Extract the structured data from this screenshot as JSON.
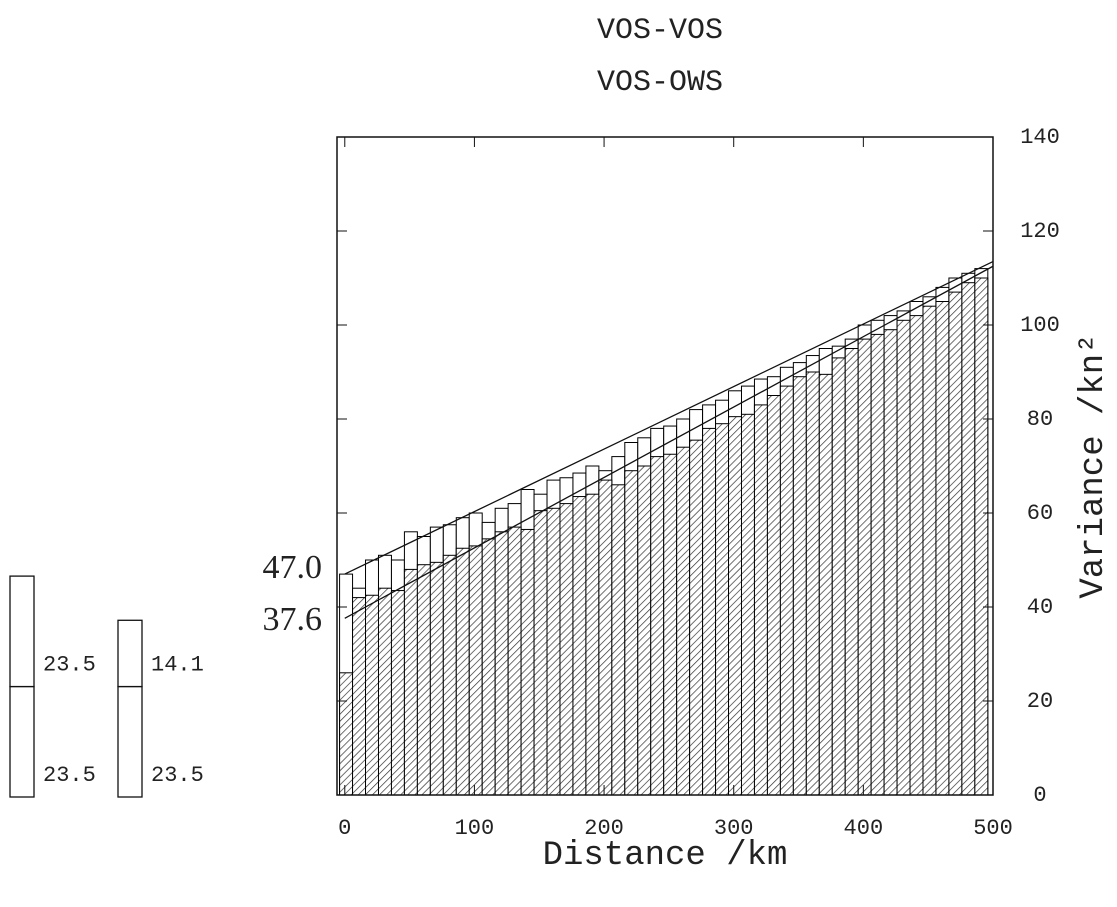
{
  "chart_data": {
    "type": "histogram",
    "x_label": "Distance /km",
    "y_label": "Variance /kn²",
    "xlim": [
      -6,
      500
    ],
    "xticks": [
      0,
      100,
      200,
      300,
      400,
      500
    ],
    "ylim": [
      0,
      140
    ],
    "yticks": [
      0,
      20,
      40,
      60,
      80,
      100,
      120,
      140
    ],
    "bins": [
      -4,
      6,
      16,
      26,
      36,
      46,
      56,
      66,
      76,
      86,
      96,
      106,
      116,
      126,
      136,
      146,
      156,
      166,
      176,
      186,
      196,
      206,
      216,
      226,
      236,
      246,
      256,
      266,
      276,
      286,
      296,
      306,
      316,
      326,
      336,
      346,
      356,
      366,
      376,
      386,
      396,
      406,
      416,
      426,
      436,
      446,
      456,
      466,
      476,
      486,
      496
    ],
    "series": [
      {
        "name": "VOS-VOS",
        "color": "#000000",
        "hatch": false,
        "values": [
          47,
          44,
          50,
          51,
          50,
          56,
          55,
          57,
          57.5,
          59,
          60,
          58,
          61,
          62,
          65,
          64,
          67,
          67.5,
          68.5,
          70,
          69,
          72,
          75,
          76,
          78,
          78.5,
          80,
          82,
          83,
          84,
          86,
          87,
          88.5,
          89,
          91,
          92,
          93.5,
          95,
          95.5,
          97,
          100,
          101,
          102,
          103,
          105,
          106,
          108,
          110,
          111,
          112
        ]
      },
      {
        "name": "VOS-OWS",
        "color": "#000000",
        "hatch": true,
        "values": [
          26,
          42,
          42.5,
          44,
          43.5,
          48,
          49,
          49.5,
          51,
          52.5,
          53,
          54.5,
          56,
          57,
          56.5,
          60.5,
          61,
          62,
          63.5,
          64,
          67,
          66,
          69,
          70,
          72,
          72.5,
          74,
          75.5,
          78,
          79,
          80.5,
          81,
          83,
          85,
          87,
          89,
          90,
          89.5,
          93,
          95,
          97,
          98,
          99,
          101,
          102,
          104,
          105,
          107,
          109,
          110
        ]
      }
    ],
    "fits": [
      {
        "x": [
          0,
          500
        ],
        "values": [
          47.0,
          113.5
        ],
        "start_label": "47.0"
      },
      {
        "x": [
          0,
          500
        ],
        "values": [
          37.6,
          112.5
        ],
        "start_label": "37.6"
      }
    ],
    "partitions": [
      {
        "values": [
          23.5,
          23.5
        ]
      },
      {
        "values": [
          23.5,
          14.1
        ]
      }
    ]
  }
}
